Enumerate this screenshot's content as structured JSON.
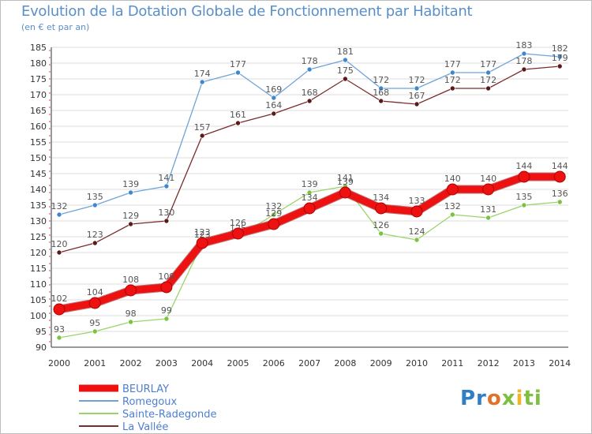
{
  "chart_data": {
    "type": "line",
    "title": "Evolution de la Dotation Globale de Fonctionnement par Habitant",
    "subtitle": "(en € et par an)",
    "xlabel": "",
    "ylabel": "",
    "x": [
      "2000",
      "2001",
      "2002",
      "2003",
      "2004",
      "2005",
      "2006",
      "2007",
      "2008",
      "2009",
      "2010",
      "2011",
      "2012",
      "2013",
      "2014"
    ],
    "ylim": [
      90,
      185
    ],
    "yticks": [
      90,
      95,
      100,
      105,
      110,
      115,
      120,
      125,
      130,
      135,
      140,
      145,
      150,
      155,
      160,
      165,
      170,
      175,
      180,
      185
    ],
    "series": [
      {
        "name": "Romegoux",
        "color": "#6fa3d8",
        "marker": "#3f87c9",
        "values": [
          132,
          135,
          139,
          141,
          174,
          177,
          169,
          178,
          181,
          172,
          172,
          177,
          177,
          183,
          182
        ]
      },
      {
        "name": "La Vallée",
        "color": "#7a2c2c",
        "marker": "#5a1a1a",
        "values": [
          120,
          123,
          129,
          130,
          157,
          161,
          164,
          168,
          175,
          168,
          167,
          172,
          172,
          178,
          179
        ]
      },
      {
        "name": "Sainte-Radegonde",
        "color": "#9bd36b",
        "marker": "#7cc242",
        "values": [
          93,
          95,
          98,
          99,
          123,
          125,
          132,
          139,
          141,
          126,
          124,
          132,
          131,
          135,
          136
        ]
      },
      {
        "name": "BEURLAY",
        "color": "#ee1111",
        "marker": "#ee1111",
        "values": [
          102,
          104,
          108,
          109,
          123,
          126,
          129,
          134,
          139,
          134,
          133,
          140,
          140,
          144,
          144
        ]
      }
    ],
    "legend": [
      "BEURLAY",
      "Romegoux",
      "Sainte-Radegonde",
      "La Vallée"
    ],
    "legend_position": "bottom-left"
  },
  "logo": {
    "p1": "Pr",
    "p2": "o",
    "p3": "x",
    "p4": "i",
    "p5": "ti"
  }
}
